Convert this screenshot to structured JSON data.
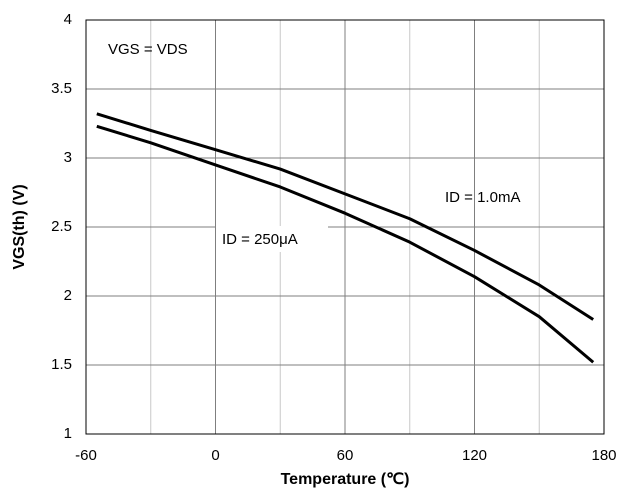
{
  "chart_data": {
    "type": "line",
    "x_label": "Temperature (℃)",
    "y_label": "VGS(th) (V)",
    "annotations": [
      "VGS = VDS",
      "ID = 1.0mA",
      "ID = 250μA"
    ],
    "x": [
      -55,
      -30,
      0,
      30,
      60,
      90,
      120,
      150,
      175
    ],
    "series": [
      {
        "name": "ID = 1.0mA",
        "color": "#000000",
        "values": [
          3.32,
          3.2,
          3.06,
          2.92,
          2.74,
          2.56,
          2.33,
          2.08,
          1.83
        ]
      },
      {
        "name": "ID = 250μA",
        "color": "#000000",
        "values": [
          3.23,
          3.11,
          2.95,
          2.79,
          2.6,
          2.39,
          2.14,
          1.85,
          1.52
        ]
      }
    ],
    "xlim": [
      -60,
      180
    ],
    "xticks": [
      -60,
      0,
      60,
      120,
      180
    ],
    "x_minor_grid": [
      -30,
      30,
      90,
      150
    ],
    "ylim": [
      1,
      4
    ],
    "yticks": [
      1,
      1.5,
      2,
      2.5,
      3,
      3.5,
      4
    ],
    "grid": true
  }
}
